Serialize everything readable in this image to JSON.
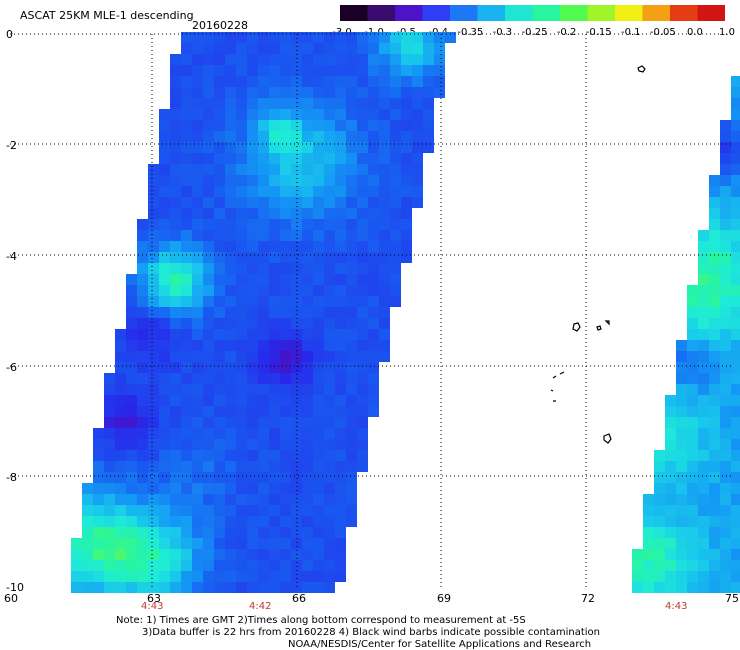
{
  "header": {
    "title": "ASCAT 25KM MLE-1 descending",
    "date": "20160228"
  },
  "colorbar": {
    "labels": [
      "-3.0",
      "-1.0",
      "-0.5",
      "-0.4",
      "-0.35",
      "-0.3",
      "-0.25",
      "-0.2",
      "-0.15",
      "-0.1",
      "-0.05",
      "0.0",
      "1.0"
    ],
    "colors": [
      "#1a0026",
      "#3b0a6e",
      "#4b14c8",
      "#2f3df5",
      "#1e78f5",
      "#19b4f0",
      "#1ee6d2",
      "#28f5a0",
      "#50fa50",
      "#a0f528",
      "#f0f014",
      "#f5a014",
      "#e63c14",
      "#d21414"
    ]
  },
  "axes": {
    "lat_labels": [
      "0",
      "-2",
      "-4",
      "-6",
      "-8",
      "-10"
    ],
    "lon_labels": [
      "60",
      "63",
      "66",
      "69",
      "72",
      "75"
    ]
  },
  "pass_times": [
    "4:43",
    "4:42",
    "4:43"
  ],
  "notes": {
    "line1": "Note: 1) Times are GMT 2)Times along bottom correspond to measurement at -5S",
    "line2": "3)Data buffer is 22 hrs from 20160228 4) Black wind barbs indicate possible contamination",
    "line3": "NOAA/NESDIS/Center for Satellite Applications and Research"
  }
}
